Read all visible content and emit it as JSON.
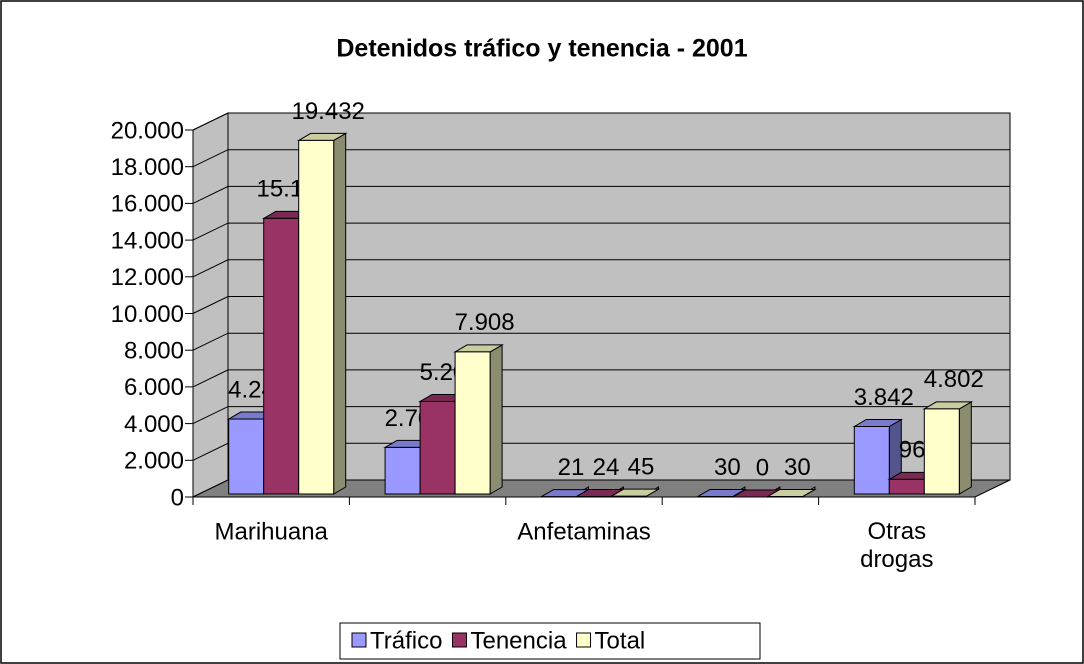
{
  "chart_data": {
    "type": "bar3d",
    "title": "Detenidos tráfico y tenencia - 2001",
    "categories": [
      "Marihuana",
      null,
      "Anfetaminas",
      null,
      "Otras drogas"
    ],
    "series": [
      {
        "name": "Tráfico",
        "color": "#9999ff",
        "values": [
          4249,
          2701,
          21,
          30,
          3842
        ],
        "value_labels": [
          "4.249",
          "2.701",
          "21",
          "30",
          "3.842"
        ]
      },
      {
        "name": "Tenencia",
        "color": "#993366",
        "values": [
          15183,
          5207,
          24,
          0,
          960
        ],
        "value_labels": [
          "15.183",
          "5.207",
          "24",
          "0",
          "960"
        ]
      },
      {
        "name": "Total",
        "color": "#ffffcc",
        "values": [
          19432,
          7908,
          45,
          30,
          4802
        ],
        "value_labels": [
          "19.432",
          "7.908",
          "45",
          "30",
          "4.802"
        ]
      }
    ],
    "ylim": [
      0,
      20000
    ],
    "yticks": [
      0,
      {
        "value": 2000,
        "label": "2.000"
      },
      {
        "value": 4000,
        "label": "4.000"
      },
      {
        "value": 6000,
        "label": "6.000"
      },
      {
        "value": 8000,
        "label": "8.000"
      },
      {
        "value": 10000,
        "label": "10.000"
      },
      {
        "value": 12000,
        "label": "12.000"
      },
      {
        "value": 14000,
        "label": "14.000"
      },
      {
        "value": 16000,
        "label": "16.000"
      },
      {
        "value": 18000,
        "label": "18.000"
      },
      {
        "value": 20000,
        "label": "20.000"
      }
    ],
    "grid": true,
    "legend": "bottom"
  }
}
